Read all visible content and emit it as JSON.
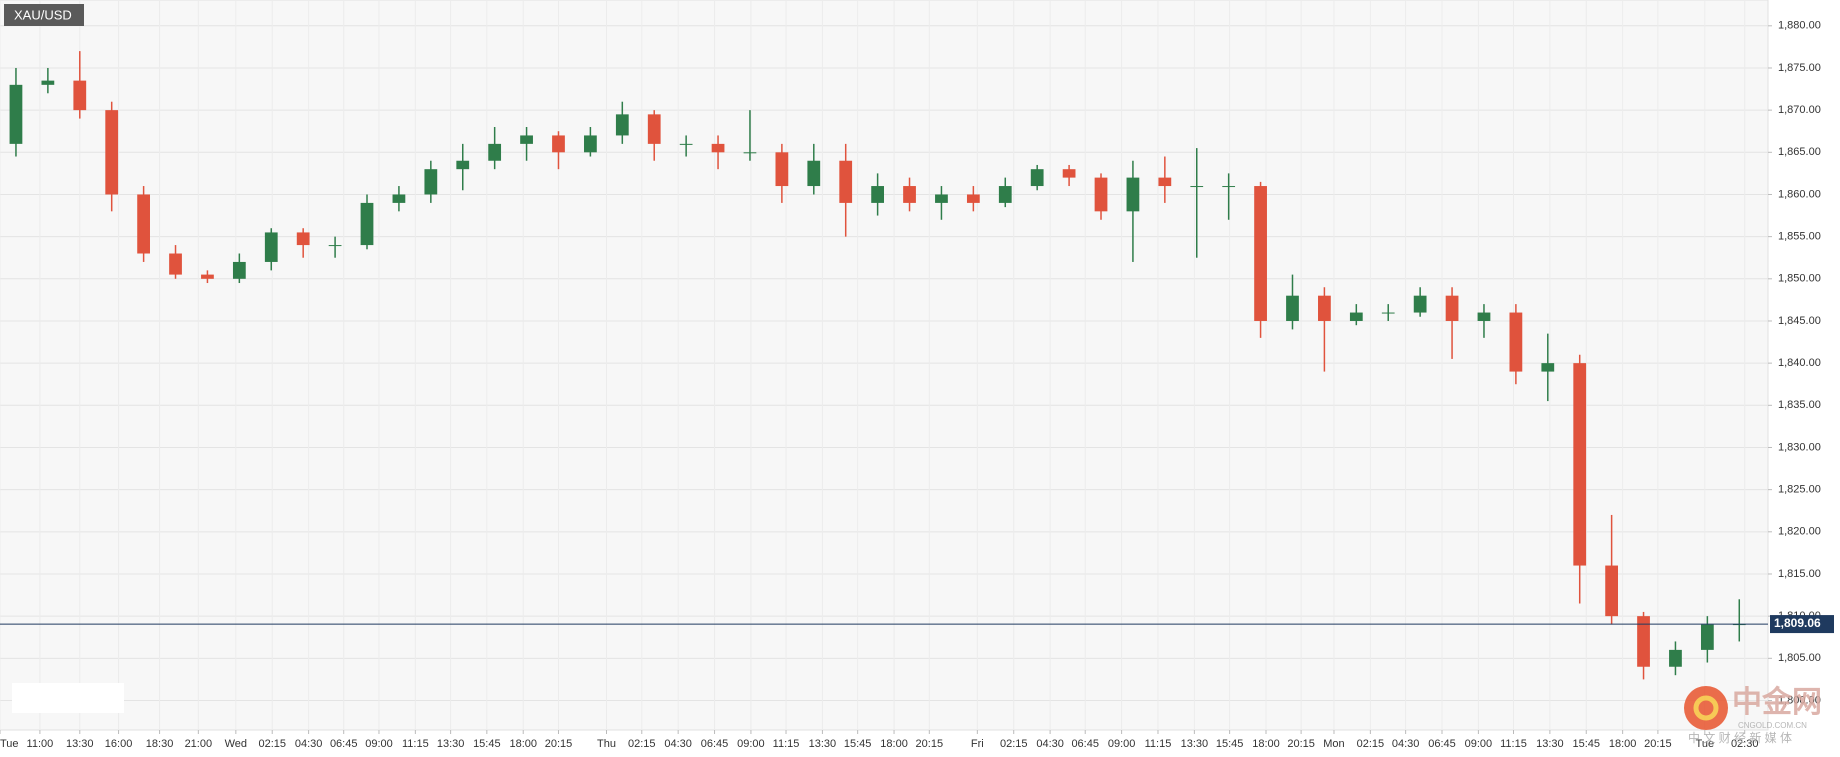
{
  "chart_data": {
    "type": "candlestick",
    "title": "XAU/USD",
    "up_color": "#2f7d4a",
    "down_color": "#e0533d",
    "grid": true,
    "x": [
      1,
      3,
      5,
      7,
      9,
      11,
      13,
      15,
      17,
      19,
      21,
      23,
      25,
      27,
      29,
      31,
      33,
      35,
      37,
      39,
      41,
      43,
      45,
      47,
      49,
      51,
      53,
      55,
      57,
      59,
      61,
      63,
      65,
      67,
      69,
      71,
      73,
      75,
      77,
      79,
      81,
      83,
      85,
      87,
      89,
      91,
      93,
      95,
      97,
      99,
      101,
      103,
      105,
      107,
      109
    ],
    "open": [
      1866,
      1873,
      1873.5,
      1870,
      1860,
      1853,
      1850.5,
      1850,
      1852,
      1855.5,
      1854,
      1854,
      1859,
      1860,
      1863,
      1864,
      1866,
      1867,
      1865,
      1867,
      1869.5,
      1866,
      1866,
      1865,
      1865,
      1861,
      1864,
      1859,
      1861,
      1859,
      1860,
      1859,
      1861,
      1863,
      1862,
      1858,
      1862,
      1861,
      1861,
      1861,
      1845,
      1848,
      1845,
      1846,
      1846,
      1848,
      1845,
      1846,
      1839,
      1840,
      1816,
      1810,
      1804,
      1806,
      1809
    ],
    "high": [
      1875,
      1875,
      1877,
      1871,
      1861,
      1854,
      1851,
      1853,
      1856,
      1856,
      1855,
      1860,
      1861,
      1864,
      1866,
      1868,
      1868,
      1867.5,
      1868,
      1871,
      1870,
      1867,
      1867,
      1870,
      1866,
      1866,
      1866,
      1862.5,
      1862,
      1861,
      1861,
      1862,
      1863.5,
      1863.5,
      1862.5,
      1864,
      1864.5,
      1865.5,
      1862.5,
      1861.5,
      1850.5,
      1849,
      1847,
      1847,
      1849,
      1849,
      1847,
      1847,
      1843.5,
      1841,
      1822,
      1810.5,
      1807,
      1810,
      1812
    ],
    "low": [
      1864.5,
      1872,
      1869,
      1858,
      1852,
      1850,
      1849.5,
      1849.5,
      1851,
      1852.5,
      1852.5,
      1853.5,
      1858,
      1859,
      1860.5,
      1863,
      1864,
      1863,
      1864.5,
      1866,
      1864,
      1864.5,
      1863,
      1864,
      1859,
      1860,
      1855,
      1857.5,
      1858,
      1857,
      1858,
      1858.5,
      1860.5,
      1861,
      1857,
      1852,
      1859,
      1852.5,
      1857,
      1843,
      1844,
      1839,
      1844.5,
      1845,
      1845.5,
      1840.5,
      1843,
      1837.5,
      1835.5,
      1811.5,
      1809,
      1802.5,
      1803,
      1804.5,
      1807
    ],
    "close": [
      1873,
      1873.5,
      1870,
      1860,
      1853,
      1850.5,
      1850,
      1852,
      1855.5,
      1854,
      1854,
      1859,
      1860,
      1863,
      1864,
      1866,
      1867,
      1865,
      1867,
      1869.5,
      1866,
      1866,
      1865,
      1865,
      1861,
      1864,
      1859,
      1861,
      1859,
      1860,
      1859,
      1861,
      1863,
      1862,
      1858,
      1862,
      1861,
      1861,
      1861,
      1845,
      1848,
      1845,
      1846,
      1846,
      1848,
      1845,
      1846,
      1839,
      1840,
      1816,
      1810,
      1804,
      1806,
      1809,
      1809.06
    ],
    "xlim": [
      0,
      110.8
    ],
    "xticks": [
      {
        "value": 0,
        "label": "Tue"
      },
      {
        "value": 2.5,
        "label": "11:00"
      },
      {
        "value": 5,
        "label": "13:30"
      },
      {
        "value": 7.43,
        "label": "16:00"
      },
      {
        "value": 10,
        "label": "18:30"
      },
      {
        "value": 12.43,
        "label": "21:00"
      },
      {
        "value": 14.78,
        "label": "Wed"
      },
      {
        "value": 17.06,
        "label": "02:15"
      },
      {
        "value": 19.34,
        "label": "04:30"
      },
      {
        "value": 21.54,
        "label": "06:45"
      },
      {
        "value": 23.75,
        "label": "09:00"
      },
      {
        "value": 26.03,
        "label": "11:15"
      },
      {
        "value": 28.24,
        "label": "13:30"
      },
      {
        "value": 30.51,
        "label": "15:45"
      },
      {
        "value": 32.79,
        "label": "18:00"
      },
      {
        "value": 35,
        "label": "20:15"
      },
      {
        "value": 38.01,
        "label": "Thu"
      },
      {
        "value": 40.22,
        "label": "02:15"
      },
      {
        "value": 42.5,
        "label": "04:30"
      },
      {
        "value": 44.78,
        "label": "06:45"
      },
      {
        "value": 47.06,
        "label": "09:00"
      },
      {
        "value": 49.26,
        "label": "11:15"
      },
      {
        "value": 51.54,
        "label": "13:30"
      },
      {
        "value": 53.75,
        "label": "15:45"
      },
      {
        "value": 56.03,
        "label": "18:00"
      },
      {
        "value": 58.24,
        "label": "20:15"
      },
      {
        "value": 61.25,
        "label": "Fri"
      },
      {
        "value": 63.53,
        "label": "02:15"
      },
      {
        "value": 65.81,
        "label": "04:30"
      },
      {
        "value": 68.01,
        "label": "06:45"
      },
      {
        "value": 70.29,
        "label": "09:00"
      },
      {
        "value": 72.57,
        "label": "11:15"
      },
      {
        "value": 74.85,
        "label": "13:30"
      },
      {
        "value": 77.06,
        "label": "15:45"
      },
      {
        "value": 79.34,
        "label": "18:00"
      },
      {
        "value": 81.54,
        "label": "20:15"
      },
      {
        "value": 83.6,
        "label": "Mon"
      },
      {
        "value": 85.88,
        "label": "02:15"
      },
      {
        "value": 88.09,
        "label": "04:30"
      },
      {
        "value": 90.37,
        "label": "06:45"
      },
      {
        "value": 92.65,
        "label": "09:00"
      },
      {
        "value": 94.85,
        "label": "11:15"
      },
      {
        "value": 97.13,
        "label": "13:30"
      },
      {
        "value": 99.41,
        "label": "15:45"
      },
      {
        "value": 101.69,
        "label": "18:00"
      },
      {
        "value": 103.9,
        "label": "20:15"
      },
      {
        "value": 106.84,
        "label": "Tue"
      },
      {
        "value": 109.34,
        "label": "02:30"
      }
    ],
    "ylim": [
      1796.5,
      1883.06
    ],
    "yticks": [
      {
        "value": 1800,
        "label": "1,800.00"
      },
      {
        "value": 1805,
        "label": "1,805.00"
      },
      {
        "value": 1810,
        "label": "1,810.00"
      },
      {
        "value": 1815,
        "label": "1,815.00"
      },
      {
        "value": 1820,
        "label": "1,820.00"
      },
      {
        "value": 1825,
        "label": "1,825.00"
      },
      {
        "value": 1830,
        "label": "1,830.00"
      },
      {
        "value": 1835,
        "label": "1,835.00"
      },
      {
        "value": 1840,
        "label": "1,840.00"
      },
      {
        "value": 1845,
        "label": "1,845.00"
      },
      {
        "value": 1850,
        "label": "1,850.00"
      },
      {
        "value": 1855,
        "label": "1,855.00"
      },
      {
        "value": 1860,
        "label": "1,860.00"
      },
      {
        "value": 1865,
        "label": "1,865.00"
      },
      {
        "value": 1870,
        "label": "1,870.00"
      },
      {
        "value": 1875,
        "label": "1,875.00"
      },
      {
        "value": 1880,
        "label": "1,880.00"
      }
    ],
    "last_price": {
      "value": 1809.06,
      "label": "1,809.06",
      "color": "#1f3a5f"
    },
    "watermark": {
      "name": "中金网",
      "site": "CNGOLD.COM.CN",
      "slogan": "中 文 财 经 新 媒 体"
    }
  }
}
